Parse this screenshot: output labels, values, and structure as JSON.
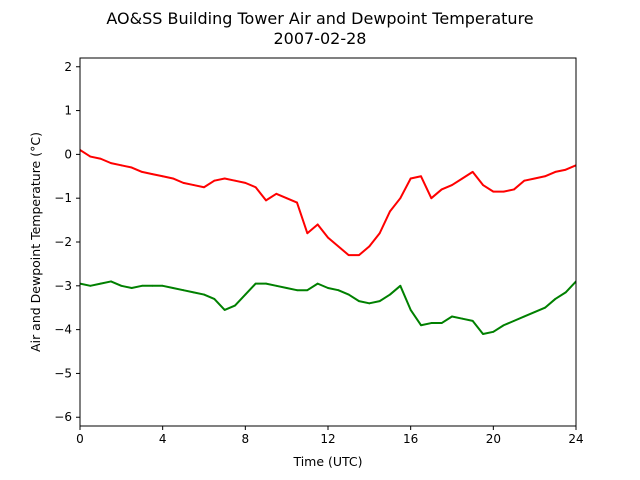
{
  "chart_data": {
    "type": "line",
    "title": "AO&SS Building Tower Air and Dewpoint Temperature",
    "subtitle": "2007-02-28",
    "xlabel": "Time (UTC)",
    "ylabel": "Air and Dewpoint Temperature (°C)",
    "xlim": [
      0,
      24
    ],
    "ylim": [
      -6.2,
      2.2
    ],
    "xticks": [
      0,
      4,
      8,
      12,
      16,
      20,
      24
    ],
    "yticks": [
      -6,
      -5,
      -4,
      -3,
      -2,
      -1,
      0,
      1,
      2
    ],
    "grid": false,
    "legend": "none",
    "series": [
      {
        "color": "#ff0000",
        "x": [
          0,
          0.5,
          1,
          1.5,
          2,
          2.5,
          3,
          3.5,
          4,
          4.5,
          5,
          5.5,
          6,
          6.5,
          7,
          7.5,
          8,
          8.5,
          9,
          9.5,
          10,
          10.5,
          11,
          11.5,
          12,
          12.5,
          13,
          13.5,
          14,
          14.5,
          15,
          15.5,
          16,
          16.5,
          17,
          17.5,
          18,
          18.5,
          19,
          19.5,
          20,
          20.5,
          21,
          21.5,
          22,
          22.5,
          23,
          23.5,
          24
        ],
        "values": [
          0.1,
          -0.05,
          -0.1,
          -0.2,
          -0.25,
          -0.3,
          -0.4,
          -0.45,
          -0.5,
          -0.55,
          -0.65,
          -0.7,
          -0.75,
          -0.6,
          -0.55,
          -0.6,
          -0.65,
          -0.75,
          -1.05,
          -0.9,
          -1.0,
          -1.1,
          -1.8,
          -1.6,
          -1.9,
          -2.1,
          -2.3,
          -2.3,
          -2.1,
          -1.8,
          -1.3,
          -1.0,
          -0.55,
          -0.5,
          -1.0,
          -0.8,
          -0.7,
          -0.55,
          -0.4,
          -0.7,
          -0.85,
          -0.85,
          -0.8,
          -0.6,
          -0.55,
          -0.5,
          -0.4,
          -0.35,
          -0.25
        ]
      },
      {
        "color": "#008000",
        "x": [
          0,
          0.5,
          1,
          1.5,
          2,
          2.5,
          3,
          3.5,
          4,
          4.5,
          5,
          5.5,
          6,
          6.5,
          7,
          7.5,
          8,
          8.5,
          9,
          9.5,
          10,
          10.5,
          11,
          11.5,
          12,
          12.5,
          13,
          13.5,
          14,
          14.5,
          15,
          15.5,
          16,
          16.5,
          17,
          17.5,
          18,
          18.5,
          19,
          19.5,
          20,
          20.5,
          21,
          21.5,
          22,
          22.5,
          23,
          23.5,
          24
        ],
        "values": [
          -2.95,
          -3.0,
          -2.95,
          -2.9,
          -3.0,
          -3.05,
          -3.0,
          -3.0,
          -3.0,
          -3.05,
          -3.1,
          -3.15,
          -3.2,
          -3.3,
          -3.55,
          -3.45,
          -3.2,
          -2.95,
          -2.95,
          -3.0,
          -3.05,
          -3.1,
          -3.1,
          -2.95,
          -3.05,
          -3.1,
          -3.2,
          -3.35,
          -3.4,
          -3.35,
          -3.2,
          -3.0,
          -3.55,
          -3.9,
          -3.85,
          -3.85,
          -3.7,
          -3.75,
          -3.8,
          -4.1,
          -4.05,
          -3.9,
          -3.8,
          -3.7,
          -3.6,
          -3.5,
          -3.3,
          -3.15,
          -2.9
        ]
      }
    ]
  }
}
